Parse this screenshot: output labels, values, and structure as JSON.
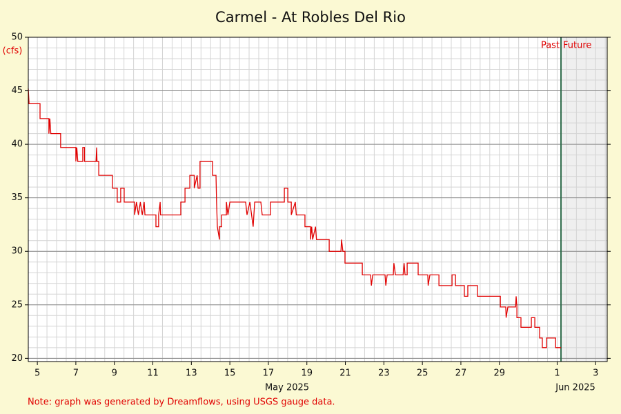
{
  "chart_data": {
    "type": "line",
    "title": "Carmel - At Robles Del Rio",
    "y_unit": "(cfs)",
    "month_labels": [
      "May 2025",
      "Jun 2025"
    ],
    "note": "Note: graph was generated by Dreamflows, using USGS gauge data.",
    "past_label": "Past",
    "future_label": "Future",
    "divider_x": 32.2,
    "xlim": [
      4.53,
      34.6
    ],
    "ylim": [
      19.7,
      50
    ],
    "xticks": [
      5,
      7,
      9,
      11,
      13,
      15,
      17,
      19,
      21,
      23,
      25,
      27,
      29,
      {
        "value": 32,
        "label": "1"
      },
      {
        "value": 34,
        "label": "3"
      }
    ],
    "yticks": [
      20,
      25,
      30,
      35,
      40,
      45,
      50
    ],
    "grid": true,
    "minor_grid": true,
    "series": [
      {
        "color": "#e00000",
        "x": [
          4.53,
          4.57,
          5.14,
          5.14,
          5.6,
          5.6,
          5.65,
          5.7,
          6.21,
          6.21,
          7.0,
          7.0,
          7.05,
          7.1,
          7.36,
          7.36,
          7.45,
          7.45,
          8.05,
          8.08,
          8.1,
          8.19,
          8.19,
          8.9,
          8.9,
          9.15,
          9.15,
          9.33,
          9.33,
          9.51,
          9.51,
          10.05,
          10.05,
          10.15,
          10.25,
          10.35,
          10.45,
          10.55,
          10.59,
          11.16,
          11.16,
          11.3,
          11.3,
          11.38,
          11.4,
          12.45,
          12.45,
          12.67,
          12.67,
          12.92,
          12.92,
          13.15,
          13.15,
          13.3,
          13.35,
          13.45,
          13.45,
          14.1,
          14.1,
          14.28,
          14.31,
          14.35,
          14.46,
          14.46,
          14.57,
          14.57,
          14.82,
          14.82,
          14.9,
          15.0,
          15.82,
          15.89,
          16.04,
          16.21,
          16.29,
          16.61,
          16.68,
          17.11,
          17.11,
          17.83,
          17.83,
          18.01,
          18.01,
          18.19,
          18.19,
          18.4,
          18.45,
          18.9,
          18.9,
          19.19,
          19.19,
          19.25,
          19.3,
          19.45,
          19.5,
          20.16,
          20.16,
          20.77,
          20.8,
          20.87,
          20.98,
          20.98,
          21.88,
          21.88,
          22.31,
          22.35,
          22.42,
          23.06,
          23.1,
          23.17,
          23.49,
          23.52,
          23.6,
          24.0,
          24.05,
          24.1,
          24.21,
          24.21,
          24.78,
          24.78,
          25.28,
          25.3,
          25.39,
          25.86,
          25.86,
          26.54,
          26.54,
          26.72,
          26.72,
          27.18,
          27.18,
          27.36,
          27.36,
          27.86,
          27.86,
          29.05,
          29.05,
          29.33,
          29.35,
          29.44,
          29.84,
          29.87,
          29.91,
          29.91,
          30.12,
          30.12,
          30.66,
          30.66,
          30.84,
          30.84,
          31.09,
          31.09,
          31.23,
          31.23,
          31.45,
          31.45,
          31.92,
          31.92,
          32.2
        ],
        "values": [
          45.2,
          43.8,
          43.8,
          42.4,
          42.4,
          41.0,
          42.4,
          41.0,
          41.0,
          39.7,
          39.7,
          38.4,
          39.7,
          38.4,
          38.4,
          39.7,
          39.7,
          38.4,
          38.4,
          39.7,
          38.4,
          38.4,
          37.1,
          37.1,
          35.9,
          35.9,
          34.6,
          34.6,
          35.9,
          35.9,
          34.6,
          34.6,
          33.4,
          34.6,
          33.4,
          34.6,
          33.4,
          34.6,
          33.4,
          33.4,
          32.3,
          32.3,
          33.4,
          34.6,
          33.4,
          33.4,
          34.6,
          34.6,
          35.9,
          35.9,
          37.1,
          37.1,
          35.9,
          37.1,
          35.9,
          35.9,
          38.4,
          38.4,
          37.1,
          37.1,
          34.6,
          32.3,
          31.1,
          32.3,
          32.3,
          33.4,
          33.4,
          34.6,
          33.4,
          34.6,
          34.6,
          33.4,
          34.6,
          32.3,
          34.6,
          34.6,
          33.4,
          33.4,
          34.6,
          34.6,
          35.9,
          35.9,
          34.6,
          34.6,
          33.4,
          34.6,
          33.4,
          33.4,
          32.3,
          32.3,
          31.1,
          32.3,
          31.1,
          32.3,
          31.1,
          31.1,
          30.0,
          30.0,
          31.1,
          30.0,
          30.0,
          28.9,
          28.9,
          27.8,
          27.8,
          26.8,
          27.8,
          27.8,
          26.8,
          27.8,
          27.8,
          28.9,
          27.8,
          27.8,
          28.9,
          27.8,
          27.8,
          28.9,
          28.9,
          27.8,
          27.8,
          26.8,
          27.8,
          27.8,
          26.8,
          26.8,
          27.8,
          27.8,
          26.8,
          26.8,
          25.8,
          25.8,
          26.8,
          26.8,
          25.8,
          25.8,
          24.8,
          24.8,
          23.8,
          24.8,
          24.8,
          25.8,
          24.8,
          23.8,
          23.8,
          22.9,
          22.9,
          23.8,
          23.8,
          22.9,
          22.9,
          21.9,
          21.9,
          21.0,
          21.0,
          21.9,
          21.9,
          21.0,
          21.0
        ]
      }
    ]
  }
}
